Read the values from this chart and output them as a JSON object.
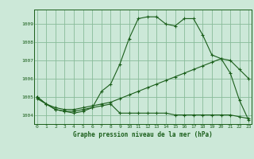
{
  "background_color": "#cce8d8",
  "plot_bg_color": "#cce8d8",
  "grid_color": "#88bb99",
  "line_color": "#1a5e1a",
  "title": "Graphe pression niveau de la mer (hPa)",
  "xlabel_hours": [
    0,
    1,
    2,
    3,
    4,
    5,
    6,
    7,
    8,
    9,
    10,
    11,
    12,
    13,
    14,
    15,
    16,
    17,
    18,
    19,
    20,
    21,
    22,
    23
  ],
  "ylim": [
    1003.5,
    1009.8
  ],
  "yticks": [
    1004,
    1005,
    1006,
    1007,
    1008,
    1009
  ],
  "series1": [
    1005.0,
    1004.6,
    1004.3,
    1004.2,
    1004.2,
    1004.3,
    1004.4,
    1005.3,
    1005.7,
    1006.8,
    1008.2,
    1009.3,
    1009.4,
    1009.4,
    1009.0,
    1008.9,
    1009.3,
    1009.3,
    1008.4,
    1007.3,
    1007.1,
    1006.3,
    1004.8,
    1003.7
  ],
  "series2": [
    1004.9,
    1004.6,
    1004.3,
    1004.2,
    1004.1,
    1004.2,
    1004.4,
    1004.5,
    1004.6,
    1004.1,
    1004.1,
    1004.1,
    1004.1,
    1004.1,
    1004.1,
    1004.0,
    1004.0,
    1004.0,
    1004.0,
    1004.0,
    1004.0,
    1004.0,
    1003.9,
    1003.8
  ],
  "series3": [
    1005.0,
    1004.6,
    1004.4,
    1004.3,
    1004.3,
    1004.4,
    1004.5,
    1004.6,
    1004.7,
    1004.9,
    1005.1,
    1005.3,
    1005.5,
    1005.7,
    1005.9,
    1006.1,
    1006.3,
    1006.5,
    1006.7,
    1006.9,
    1007.1,
    1007.0,
    1006.5,
    1006.0
  ],
  "figsize": [
    3.2,
    2.0
  ],
  "dpi": 100
}
